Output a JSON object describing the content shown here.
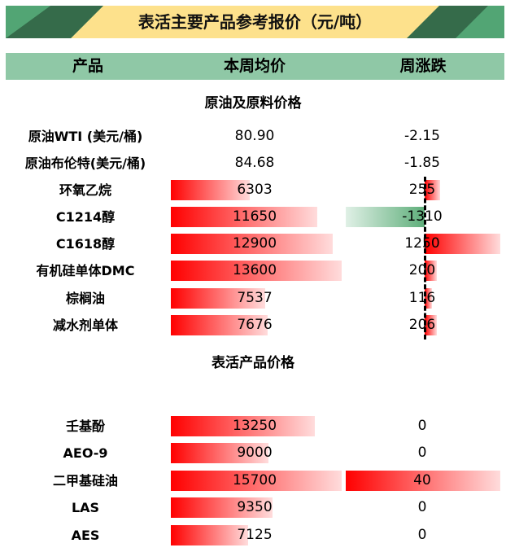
{
  "title": "表活主要产品参考报价（元/吨）",
  "headers": {
    "product": "产品",
    "price": "本周均价",
    "change": "周涨跌"
  },
  "colors": {
    "banner": "#fde18c",
    "banner_stripe_dark": "#356b4a",
    "banner_stripe_light": "#52a574",
    "header_bg": "#8fc8a6",
    "bar_positive": "#ff0000",
    "bar_negative": "#5eae7a"
  },
  "sections": [
    {
      "title": "原油及原料价格",
      "rows": [
        {
          "name": "原油WTI (美元/桶)",
          "price": "80.90",
          "change": "-2.15",
          "price_bar": null,
          "change_bar": null
        },
        {
          "name": "原油布伦特(美元/桶)",
          "price": "84.68",
          "change": "-1.85",
          "price_bar": null,
          "change_bar": null
        },
        {
          "name": "环氧乙烷",
          "price": "6303",
          "change": "255",
          "price_bar": 6303,
          "change_bar": 255
        },
        {
          "name": "C1214醇",
          "price": "11650",
          "change": "-1310",
          "price_bar": 11650,
          "change_bar": -1310
        },
        {
          "name": "C1618醇",
          "price": "12900",
          "change": "1250",
          "price_bar": 12900,
          "change_bar": 1250
        },
        {
          "name": "有机硅单体DMC",
          "price": "13600",
          "change": "200",
          "price_bar": 13600,
          "change_bar": 200
        },
        {
          "name": "棕榈油",
          "price": "7537",
          "change": "116",
          "price_bar": 7537,
          "change_bar": 116
        },
        {
          "name": "减水剂单体",
          "price": "7676",
          "change": "206",
          "price_bar": 7676,
          "change_bar": 206
        }
      ]
    },
    {
      "title": "表活产品价格",
      "rows": [
        {
          "name": "壬基酚",
          "price": "13250",
          "change": "0",
          "price_bar": 13250,
          "change_bar": 0
        },
        {
          "name": "AEO-9",
          "price": "9000",
          "change": "0",
          "price_bar": 9000,
          "change_bar": 0
        },
        {
          "name": "二甲基硅油",
          "price": "15700",
          "change": "40",
          "price_bar": 15700,
          "change_bar": 40
        },
        {
          "name": "LAS",
          "price": "9350",
          "change": "0",
          "price_bar": 9350,
          "change_bar": 0
        },
        {
          "name": "AES",
          "price": "7125",
          "change": "0",
          "price_bar": 7125,
          "change_bar": 0
        }
      ]
    }
  ]
}
